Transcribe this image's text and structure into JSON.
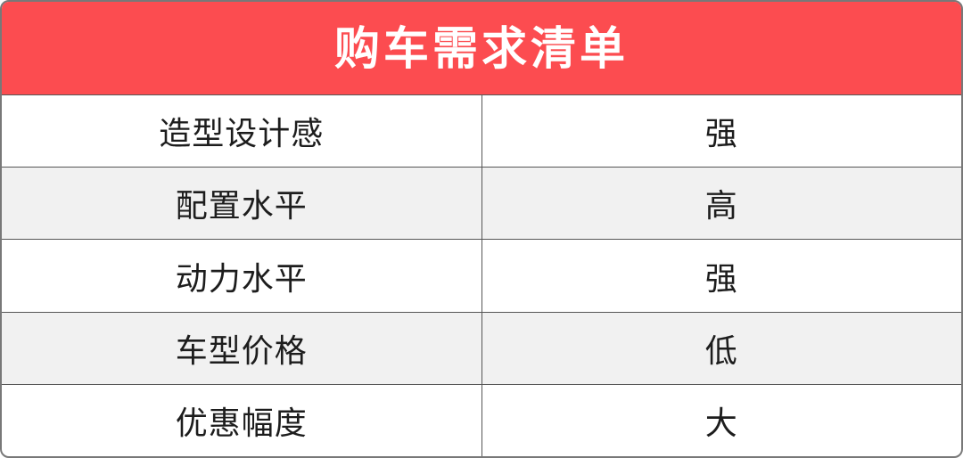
{
  "table": {
    "title": "购车需求清单",
    "rows": [
      {
        "label": "造型设计感",
        "value": "强"
      },
      {
        "label": "配置水平",
        "value": "高"
      },
      {
        "label": "动力水平",
        "value": "强"
      },
      {
        "label": "车型价格",
        "value": "低"
      },
      {
        "label": "优惠幅度",
        "value": "大"
      }
    ],
    "colors": {
      "header_bg": "#fc4c50",
      "header_text": "#ffffff",
      "row_bg": "#ffffff",
      "row_alt_bg": "#f1f1f1",
      "divider": "#565656",
      "outer_border": "#787878",
      "body_text": "#1d1d1d"
    }
  },
  "chart_data": {
    "type": "table",
    "title": "购车需求清单",
    "rows": [
      [
        "造型设计感",
        "强"
      ],
      [
        "配置水平",
        "高"
      ],
      [
        "动力水平",
        "强"
      ],
      [
        "车型价格",
        "低"
      ],
      [
        "优惠幅度",
        "大"
      ]
    ],
    "layout": {
      "columns": 2,
      "header_color": "#fc4c50",
      "alternating_rows": true
    }
  }
}
